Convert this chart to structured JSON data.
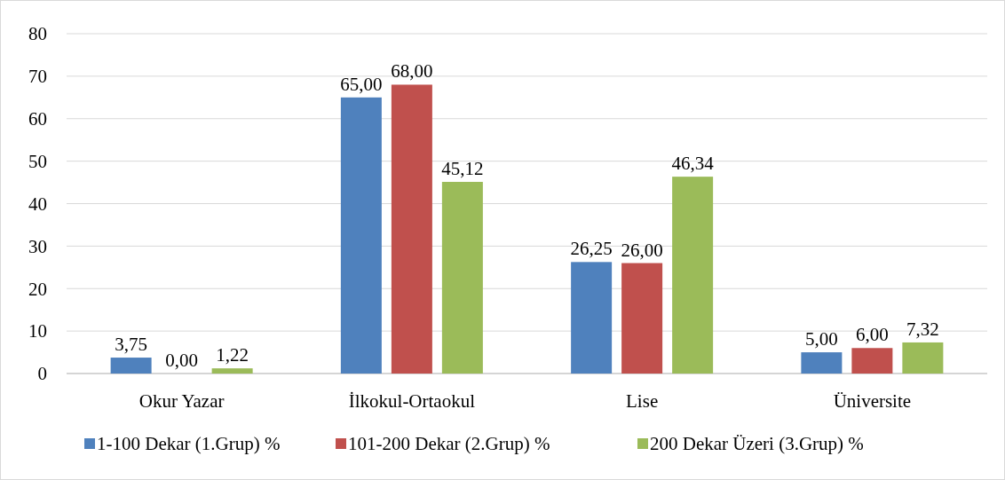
{
  "chart_data": {
    "type": "bar",
    "categories": [
      "Okur Yazar",
      "İlkokul-Ortaokul",
      "Lise",
      "Üniversite"
    ],
    "series": [
      {
        "name": "1-100 Dekar (1.Grup) %",
        "color": "#4f81bd",
        "values": [
          3.75,
          65,
          26.25,
          5
        ],
        "value_labels": [
          "3,75",
          "65,00",
          "26,25",
          "5,00"
        ]
      },
      {
        "name": "101-200 Dekar (2.Grup) %",
        "color": "#c0504d",
        "values": [
          0,
          68,
          26,
          6
        ],
        "value_labels": [
          "0,00",
          "68,00",
          "26,00",
          "6,00"
        ]
      },
      {
        "name": "200 Dekar Üzeri (3.Grup) %",
        "color": "#9bbb59",
        "values": [
          1.22,
          45.12,
          46.34,
          7.32
        ],
        "value_labels": [
          "1,22",
          "45,12",
          "46,34",
          "7,32"
        ]
      }
    ],
    "ylim": [
      0,
      80
    ],
    "yticks": [
      0,
      10,
      20,
      30,
      40,
      50,
      60,
      70,
      80
    ],
    "grid": "y",
    "legend": "bottom"
  }
}
